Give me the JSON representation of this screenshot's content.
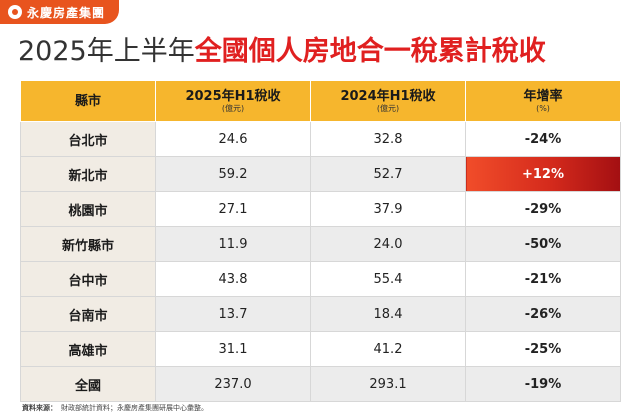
{
  "brand": {
    "name": "永慶房產集團",
    "accent_color": "#e8541e",
    "logo_icon": "yungching-logo-icon"
  },
  "title": {
    "part1": "2025年上半年",
    "part2": "全國個人房地合一稅累計稅收",
    "highlight_color": "#e02020"
  },
  "table": {
    "header_color": "#f6b62d",
    "highlight_color": "#d42a1c",
    "columns": [
      {
        "label": "縣市",
        "sub": ""
      },
      {
        "label": "2025年H1稅收",
        "sub": "(億元)"
      },
      {
        "label": "2024年H1稅收",
        "sub": "(億元)"
      },
      {
        "label": "年增率",
        "sub": "(%)"
      }
    ],
    "rows": [
      {
        "county": "台北市",
        "h1_2025": "24.6",
        "h1_2024": "32.8",
        "yoy": "-24%"
      },
      {
        "county": "新北市",
        "h1_2025": "59.2",
        "h1_2024": "52.7",
        "yoy": "+12%"
      },
      {
        "county": "桃園市",
        "h1_2025": "27.1",
        "h1_2024": "37.9",
        "yoy": "-29%"
      },
      {
        "county": "新竹縣市",
        "h1_2025": "11.9",
        "h1_2024": "24.0",
        "yoy": "-50%"
      },
      {
        "county": "台中市",
        "h1_2025": "43.8",
        "h1_2024": "55.4",
        "yoy": "-21%"
      },
      {
        "county": "台南市",
        "h1_2025": "13.7",
        "h1_2024": "18.4",
        "yoy": "-26%"
      },
      {
        "county": "高雄市",
        "h1_2025": "31.1",
        "h1_2024": "41.2",
        "yoy": "-25%"
      },
      {
        "county": "全國",
        "h1_2025": "237.0",
        "h1_2024": "293.1",
        "yoy": "-19%"
      }
    ]
  },
  "source": {
    "label": "資料來源：",
    "text": "財政部統計資料；永慶房產集團研展中心彙整。"
  }
}
